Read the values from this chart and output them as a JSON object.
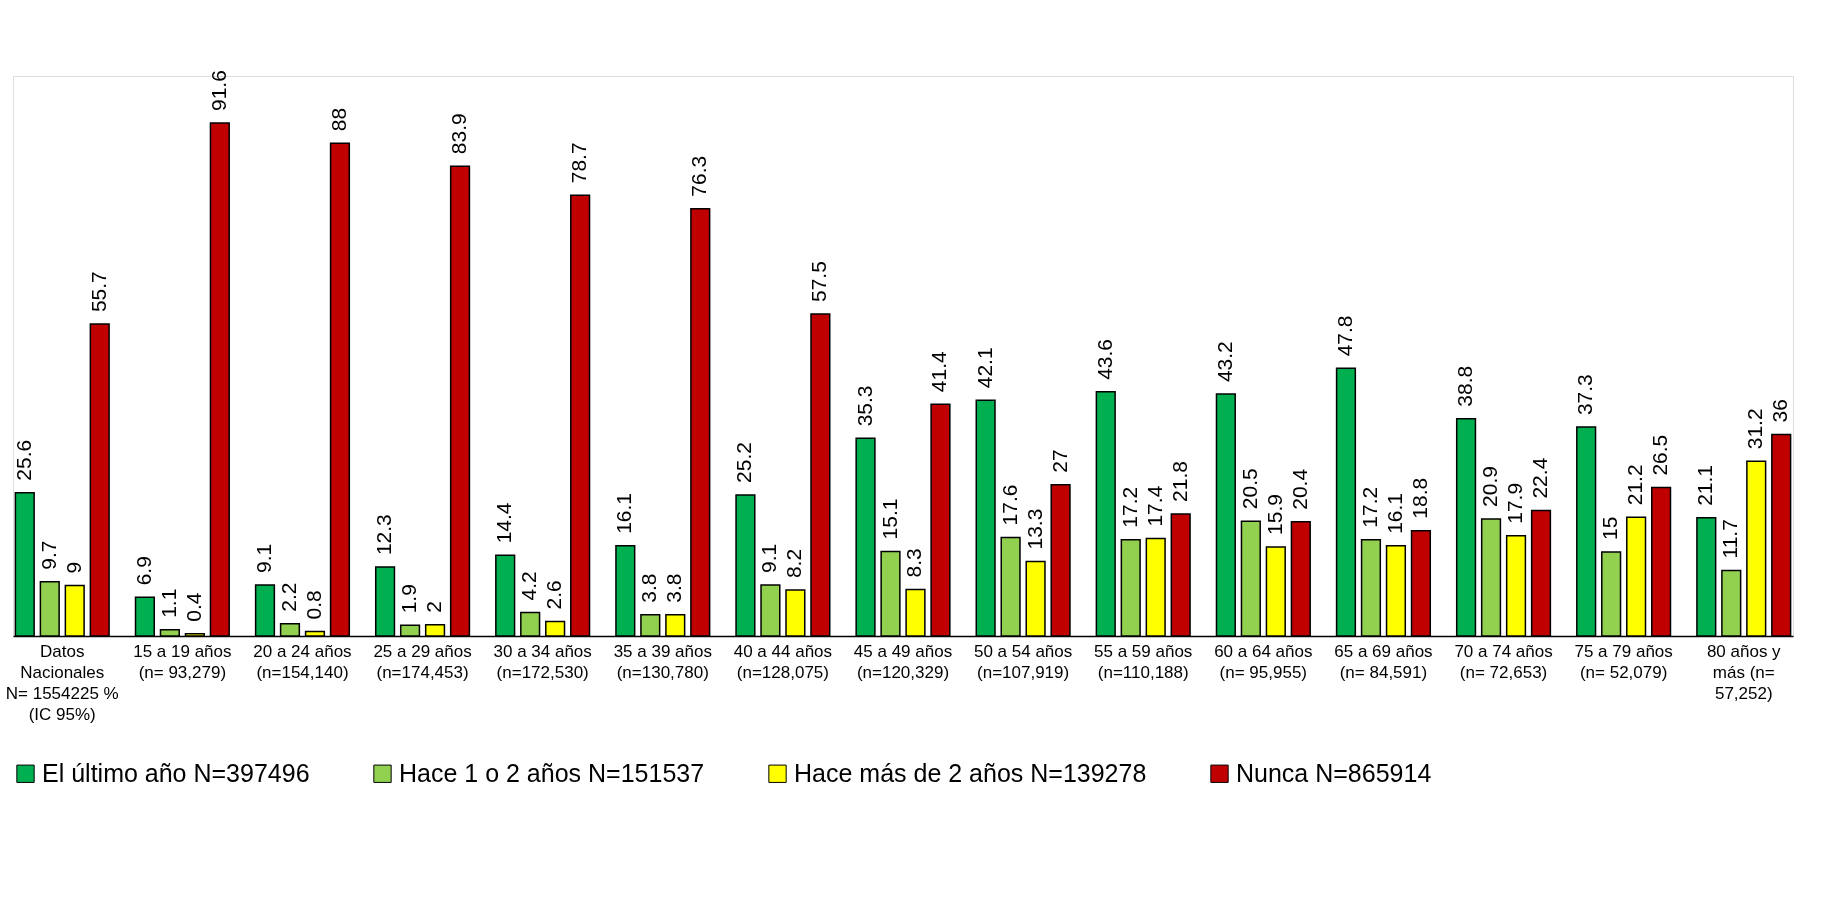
{
  "chart_data": {
    "type": "bar",
    "categories": [
      "Datos Nacionales N= 1554225 % (IC 95%)",
      "15 a 19 años (n= 93,279)",
      "20 a 24 años (n=154,140)",
      "25 a 29 años (n=174,453)",
      "30 a 34 años (n=172,530)",
      "35 a 39 años (n=130,780)",
      "40 a 44 años (n=128,075)",
      "45 a 49 años (n=120,329)",
      "50 a 54 años (n=107,919)",
      "55 a 59 años (n=110,188)",
      "60 a 64 años (n= 95,955)",
      "65 a 69 años (n= 84,591)",
      "70 a 74 años (n= 72,653)",
      "75 a 79 años (n= 52,079)",
      "80 años y más (n= 57,252)"
    ],
    "series": [
      {
        "name": "El último año N=397496",
        "color": "#00b050",
        "values": [
          25.6,
          6.9,
          9.1,
          12.3,
          14.4,
          16.1,
          25.2,
          35.3,
          42.1,
          43.6,
          43.2,
          47.8,
          38.8,
          37.3,
          21.1
        ]
      },
      {
        "name": "Hace 1 o 2 años N=151537",
        "color": "#92d050",
        "values": [
          9.7,
          1.1,
          2.2,
          1.9,
          4.2,
          3.8,
          9.1,
          15.1,
          17.6,
          17.2,
          20.5,
          17.2,
          20.9,
          15,
          11.7
        ]
      },
      {
        "name": "Hace más de 2 años N=139278",
        "color": "#ffff00",
        "values": [
          9,
          0.4,
          0.8,
          2,
          2.6,
          3.8,
          8.2,
          8.3,
          13.3,
          17.4,
          15.9,
          16.1,
          17.9,
          21.2,
          31.2
        ]
      },
      {
        "name": "Nunca N=865914",
        "color": "#c00000",
        "values": [
          55.7,
          91.6,
          88,
          83.9,
          78.7,
          76.3,
          57.5,
          41.4,
          27,
          21.8,
          20.4,
          18.8,
          22.4,
          26.5,
          36
        ]
      }
    ],
    "data_labels": true,
    "legend": "bottom"
  }
}
